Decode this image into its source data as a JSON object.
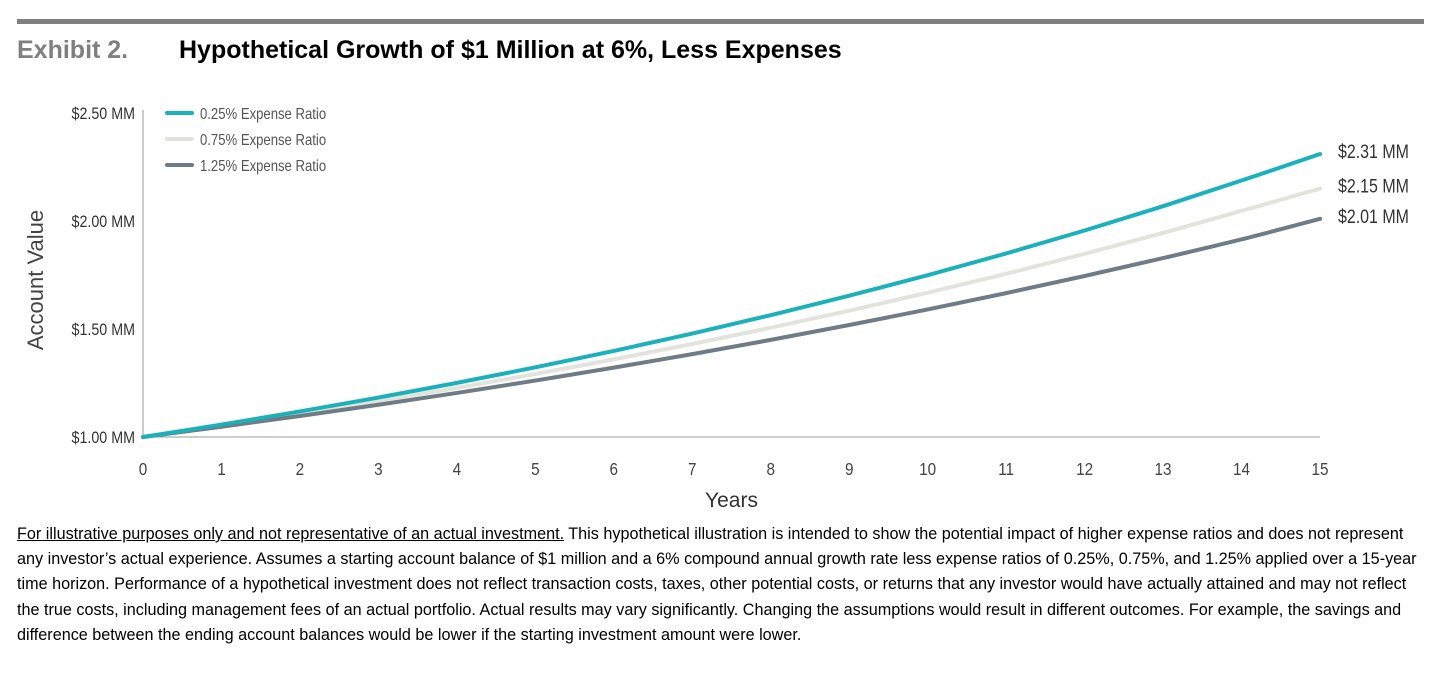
{
  "header": {
    "exhibit_label": "Exhibit 2.",
    "title": "Hypothetical Growth of $1 Million at 6%, Less Expenses"
  },
  "chart_data": {
    "type": "line",
    "xlabel": "Years",
    "ylabel": "Account Value",
    "x": [
      0,
      1,
      2,
      3,
      4,
      5,
      6,
      7,
      8,
      9,
      10,
      11,
      12,
      13,
      14,
      15
    ],
    "xlim": [
      0,
      15
    ],
    "ylim": [
      1.0,
      2.5
    ],
    "y_ticks": [
      1.0,
      1.5,
      2.0,
      2.5
    ],
    "y_tick_labels": [
      "$1.00 MM",
      "$1.50 MM",
      "$2.00 MM",
      "$2.50 MM"
    ],
    "grid": false,
    "legend_position": "top-left",
    "series": [
      {
        "name": "0.25% Expense Ratio",
        "color": "#1bb1ba",
        "values": [
          1.0,
          1.0575,
          1.1183,
          1.1826,
          1.2506,
          1.3225,
          1.3986,
          1.479,
          1.564,
          1.654,
          1.7491,
          1.8496,
          1.956,
          2.0685,
          2.1874,
          2.31
        ],
        "end_label": "$2.31 MM"
      },
      {
        "name": "0.75% Expense Ratio",
        "color": "#e2e3dd",
        "values": [
          1.0,
          1.0525,
          1.1078,
          1.1659,
          1.2271,
          1.2916,
          1.3594,
          1.4308,
          1.5059,
          1.5849,
          1.6681,
          1.7557,
          1.8479,
          1.9449,
          2.047,
          2.15
        ],
        "end_label": "$2.15 MM"
      },
      {
        "name": "1.25% Expense Ratio",
        "color": "#6f7b85",
        "values": [
          1.0,
          1.0475,
          1.0973,
          1.1494,
          1.204,
          1.2612,
          1.3211,
          1.3838,
          1.4496,
          1.5184,
          1.5906,
          1.6661,
          1.7453,
          1.8282,
          1.915,
          2.01
        ],
        "end_label": "$2.01 MM"
      }
    ]
  },
  "footnote": {
    "underlined": "For illustrative purposes only and not representative of an actual investment.",
    "body": " This hypothetical illustration is intended to show the potential impact of higher expense ratios and does not represent any investor’s actual experience. Assumes a starting account balance of $1 million and a 6% compound annual growth rate less expense ratios of 0.25%, 0.75%, and 1.25% applied over a 15-year time horizon. Performance of a hypothetical investment does not reflect transaction costs, taxes, other potential costs, or returns that any investor would have actually attained and may not reflect the true costs, including management fees of an actual portfolio. Actual results may vary significantly. Changing the assumptions would result in different outcomes. For example, the savings and difference between the ending account balances would be lower if the starting investment amount were lower."
  }
}
